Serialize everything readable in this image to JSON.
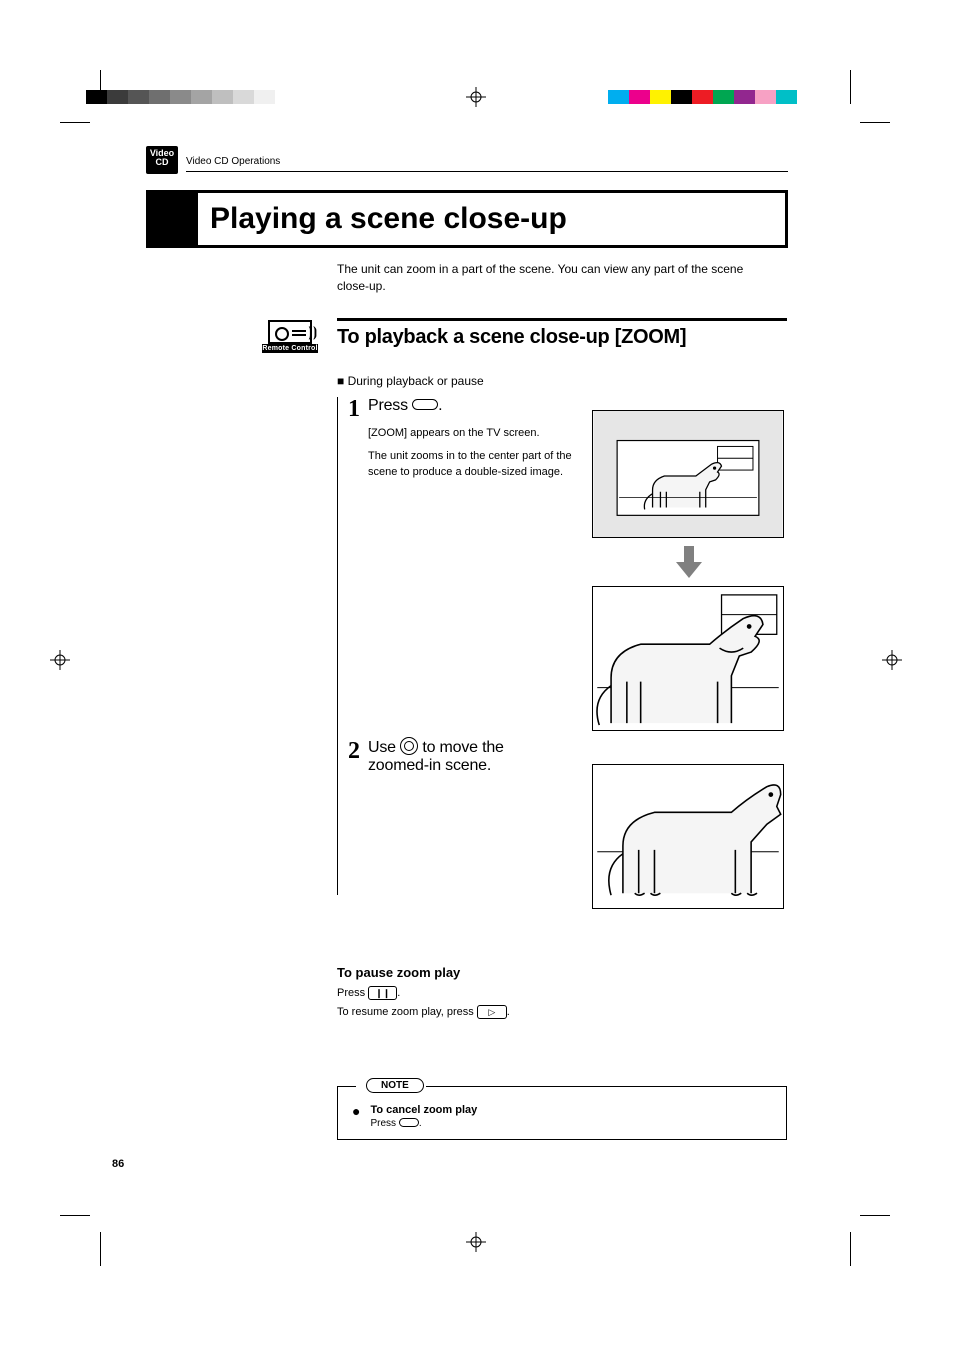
{
  "header": {
    "badge_line1": "Video",
    "badge_line2": "CD",
    "breadcrumb": "Video CD Operations"
  },
  "title": "Playing a scene close-up",
  "intro": "The unit can zoom in a part of the scene.  You can view any part of the scene close-up.",
  "remote_label": "Remote Control",
  "section_heading": "To playback a scene close-up  [ZOOM]",
  "subheading": "During playback or pause",
  "steps": {
    "s1": {
      "num": "1",
      "title_before": "Press ",
      "title_after": ".",
      "desc_line1": "[ZOOM] appears on the TV screen.",
      "desc_line2": "The unit zooms in to the center part of the scene to produce a double-sized image."
    },
    "s2": {
      "num": "2",
      "title_before": "Use ",
      "title_mid": " to move the",
      "title_line2": "zoomed-in scene."
    }
  },
  "pause": {
    "title": "To pause zoom play",
    "line1_before": "Press ",
    "line1_btn": "❙❙",
    "line1_after": ".",
    "line2_before": "To resume zoom play, press ",
    "line2_btn": "▷",
    "line2_after": "."
  },
  "note": {
    "label": "NOTE",
    "item_title": "To cancel zoom play",
    "item_body_before": "Press ",
    "item_body_after": "."
  },
  "page_number": "86",
  "colorbars": {
    "left": [
      "#000000",
      "#3b3b3b",
      "#555555",
      "#6f6f6f",
      "#8a8a8a",
      "#a4a4a4",
      "#bfbfbf",
      "#d9d9d9",
      "#f0f0f0",
      "#ffffff"
    ],
    "right": [
      "#00aeef",
      "#ec008c",
      "#fff200",
      "#000000",
      "#ed1c24",
      "#00a651",
      "#92278f",
      "#f7a1c4",
      "#00bfc7",
      "#ffffff"
    ]
  },
  "illustration": {
    "tv_bg": "#e6e6e6",
    "dog_fill": "#f5f5f5",
    "stroke": "#000000"
  }
}
